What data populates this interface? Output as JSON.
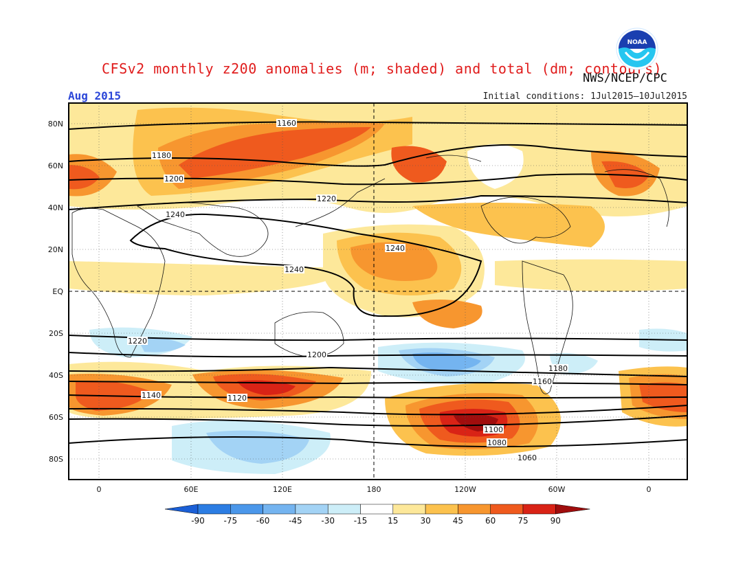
{
  "header": {
    "title": "CFSv2 monthly z200 anomalies (m; shaded) and total (dm; contours)",
    "valid_month": "Aug 2015",
    "initial_conditions": "Initial conditions: 1Jul2015–10Jul2015",
    "organization": "NWS/NCEP/CPC",
    "logo_text": "NOAA"
  },
  "map": {
    "x_ticks": [
      "0",
      "60E",
      "120E",
      "180",
      "120W",
      "60W",
      "0"
    ],
    "y_ticks": [
      "80N",
      "60N",
      "40N",
      "20N",
      "EQ",
      "20S",
      "40S",
      "60S",
      "80S"
    ]
  },
  "contour_labels": [
    "1160",
    "1180",
    "1200",
    "1220",
    "1240",
    "1240",
    "1240",
    "1220",
    "1200",
    "1180",
    "1160",
    "1140",
    "1120",
    "1100",
    "1080",
    "1060"
  ],
  "colorbar": {
    "labels": [
      "-90",
      "-75",
      "-60",
      "-45",
      "-30",
      "-15",
      "15",
      "30",
      "45",
      "60",
      "75",
      "90"
    ],
    "colors": [
      "#1b5fd6",
      "#2c7de3",
      "#4b97ea",
      "#74b4f0",
      "#a3d3f5",
      "#cdeef8",
      "#ffffff",
      "#fde89a",
      "#fcc24e",
      "#f7962f",
      "#ef5a1e",
      "#d92316",
      "#a00d0d"
    ]
  }
}
